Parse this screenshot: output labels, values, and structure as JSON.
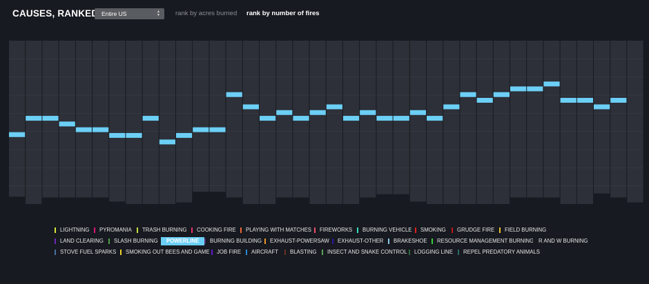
{
  "header": {
    "title": "CAUSES, RANKED",
    "region_select": "Entire US",
    "rank_by_acres": "rank by acres burned",
    "rank_by_fires": "rank by number of fires"
  },
  "colors": {
    "background": "#171a20",
    "column": "#2d3038",
    "column_line": "#3a3e46",
    "marker": "#6ccff6",
    "selected_bg": "#6ccff6"
  },
  "chart_data": {
    "type": "bump",
    "title": "Causes, ranked",
    "selected_series": "POWERLINE",
    "rank_by": "number of fires",
    "y_scale": "rank (top = highest)",
    "column_extents": [
      [
        0.0,
        0.955
      ],
      [
        0.0,
        1.0
      ],
      [
        0.0,
        0.96
      ],
      [
        0.0,
        0.96
      ],
      [
        0.0,
        0.96
      ],
      [
        0.0,
        0.96
      ],
      [
        0.0,
        0.985
      ],
      [
        0.0,
        1.0
      ],
      [
        0.0,
        1.0
      ],
      [
        0.0,
        1.0
      ],
      [
        0.0,
        0.99
      ],
      [
        0.0,
        0.925
      ],
      [
        0.0,
        0.925
      ],
      [
        0.0,
        0.96
      ],
      [
        0.0,
        1.0
      ],
      [
        0.0,
        1.0
      ],
      [
        0.0,
        0.96
      ],
      [
        0.0,
        0.96
      ],
      [
        0.0,
        1.0
      ],
      [
        0.0,
        1.0
      ],
      [
        0.0,
        1.0
      ],
      [
        0.0,
        0.96
      ],
      [
        0.0,
        0.94
      ],
      [
        0.0,
        0.94
      ],
      [
        0.0,
        0.985
      ],
      [
        0.0,
        1.0
      ],
      [
        0.0,
        1.0
      ],
      [
        0.0,
        1.0
      ],
      [
        0.0,
        1.0
      ],
      [
        0.0,
        1.0
      ],
      [
        0.0,
        0.96
      ],
      [
        0.0,
        0.96
      ],
      [
        0.0,
        0.96
      ],
      [
        0.0,
        1.0
      ],
      [
        0.0,
        1.0
      ],
      [
        0.0,
        0.935
      ],
      [
        0.0,
        0.96
      ],
      [
        0.0,
        0.99
      ]
    ],
    "powerline_rank_position": [
      0.575,
      0.475,
      0.475,
      0.51,
      0.545,
      0.545,
      0.58,
      0.58,
      0.475,
      0.62,
      0.58,
      0.545,
      0.545,
      0.33,
      0.405,
      0.475,
      0.44,
      0.475,
      0.44,
      0.405,
      0.475,
      0.44,
      0.475,
      0.475,
      0.44,
      0.475,
      0.405,
      0.33,
      0.365,
      0.33,
      0.295,
      0.295,
      0.265,
      0.365,
      0.365,
      0.405,
      0.365
    ]
  },
  "legend": [
    {
      "label": "LIGHTNING",
      "color": "#d8e838"
    },
    {
      "label": "PYROMANIA",
      "color": "#e0147a"
    },
    {
      "label": "TRASH BURNING",
      "color": "#c8e040"
    },
    {
      "label": "COOKING FIRE",
      "color": "#e8306a"
    },
    {
      "label": "PLAYING WITH MATCHES",
      "color": "#f06838"
    },
    {
      "label": "FIREWORKS",
      "color": "#f05068"
    },
    {
      "label": "BURNING VEHICLE",
      "color": "#38e0c0"
    },
    {
      "label": "SMOKING",
      "color": "#e82020"
    },
    {
      "label": "GRUDGE FIRE",
      "color": "#c01818"
    },
    {
      "label": "FIELD BURNING",
      "color": "#f0c030"
    },
    {
      "label": "LAND CLEARING",
      "color": "#7028b8"
    },
    {
      "label": "SLASH BURNING",
      "color": "#50a048"
    },
    {
      "label": "POWERLINE",
      "color": "#6ccff6"
    },
    {
      "label": "BURNING BUILDING",
      "color": "#583070"
    },
    {
      "label": "EXHAUST-POWERSAW",
      "color": "#e89828"
    },
    {
      "label": "EXHAUST-OTHER",
      "color": "#3018a0"
    },
    {
      "label": "BRAKESHOE",
      "color": "#88c8e8"
    },
    {
      "label": "RESOURCE MANAGEMENT BURNING",
      "color": "#38d038"
    },
    {
      "label": "R AND W BURNING",
      "color": "#171a20"
    },
    {
      "label": "STOVE FUEL SPARKS",
      "color": "#4870a0"
    },
    {
      "label": "SMOKING OUT BEES AND GAME",
      "color": "#f0d028"
    },
    {
      "label": "JOB FIRE",
      "color": "#6018d0"
    },
    {
      "label": "AIRCRAFT",
      "color": "#2888d8"
    },
    {
      "label": "BLASTING",
      "color": "#683020"
    },
    {
      "label": "INSECT AND SNAKE CONTROL",
      "color": "#58a058"
    },
    {
      "label": "LOGGING LINE",
      "color": "#2e6a40"
    },
    {
      "label": "REPEL PREDATORY ANIMALS",
      "color": "#2a6868"
    }
  ]
}
